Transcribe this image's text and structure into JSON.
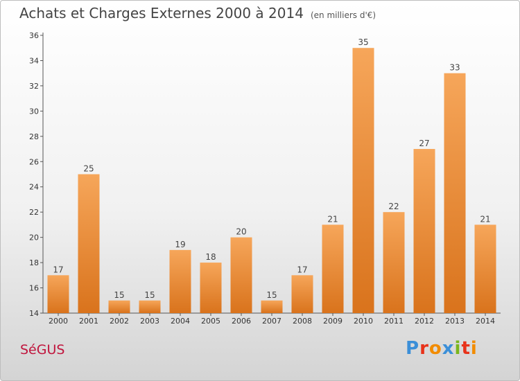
{
  "header": {
    "title": "Achats et Charges Externes 2000 à 2014",
    "unit": "(en milliers d'€)"
  },
  "commune": "SéGUS",
  "logo": {
    "text": "Proxiti",
    "colors": [
      "#3b8fd8",
      "#e8321a",
      "#f28c00",
      "#3b8fd8",
      "#7ab51d",
      "#e8321a",
      "#f28c00"
    ]
  },
  "chart_data": {
    "type": "bar",
    "title": "Achats et Charges Externes 2000 à 2014",
    "subtitle": "(en milliers d'€)",
    "xlabel": "",
    "ylabel": "",
    "categories": [
      "2000",
      "2001",
      "2002",
      "2003",
      "2004",
      "2005",
      "2006",
      "2007",
      "2008",
      "2009",
      "2010",
      "2011",
      "2012",
      "2013",
      "2014"
    ],
    "values": [
      17,
      25,
      15,
      15,
      19,
      18,
      20,
      15,
      17,
      21,
      35,
      22,
      27,
      33,
      21
    ],
    "ylim": [
      14,
      36
    ],
    "yticks": [
      14,
      16,
      18,
      20,
      22,
      24,
      26,
      28,
      30,
      32,
      34,
      36
    ],
    "grid": false,
    "legend": "none",
    "bar_color": "#f29a40",
    "bar_color_dark": "#d56f12"
  }
}
